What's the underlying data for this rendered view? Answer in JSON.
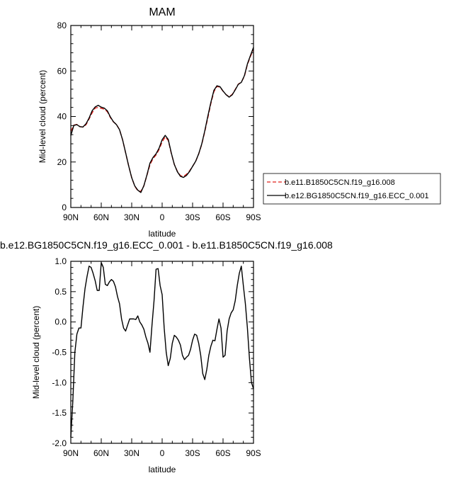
{
  "chart_data": [
    {
      "type": "line",
      "title": "MAM",
      "xlabel": "latitude",
      "ylabel": "Mid-level cloud (percent)",
      "xlim": [
        90,
        -90
      ],
      "ylim": [
        0,
        80
      ],
      "x_ticks": [
        90,
        60,
        30,
        0,
        -30,
        -60,
        -90
      ],
      "x_tick_labels": [
        "90N",
        "60N",
        "30N",
        "0",
        "30S",
        "60S",
        "90S"
      ],
      "y_ticks": [
        0,
        20,
        40,
        60,
        80
      ],
      "y_tick_labels": [
        "0",
        "20",
        "40",
        "60",
        "80"
      ],
      "legend_position": "right",
      "x": [
        90,
        87,
        84,
        81,
        78,
        75,
        72,
        69,
        66,
        63,
        60,
        57,
        54,
        51,
        48,
        45,
        42,
        39,
        36,
        33,
        30,
        27,
        24,
        21,
        18,
        15,
        12,
        9,
        6,
        3,
        0,
        -3,
        -6,
        -9,
        -12,
        -15,
        -18,
        -21,
        -24,
        -27,
        -30,
        -33,
        -36,
        -39,
        -42,
        -45,
        -48,
        -51,
        -54,
        -57,
        -60,
        -63,
        -66,
        -69,
        -72,
        -75,
        -78,
        -81,
        -84,
        -87,
        -90
      ],
      "series": [
        {
          "name": "b.e11.B1850C5CN.f19_g16.008",
          "color": "#e0201b",
          "dash": "dashed",
          "values": [
            33.5,
            36.2,
            36.5,
            35.6,
            35.3,
            36.4,
            38.9,
            41.6,
            43.7,
            44.0,
            43.6,
            43.2,
            42.1,
            39.5,
            37.6,
            36.5,
            34.2,
            29.8,
            24.0,
            18.3,
            13.1,
            9.4,
            7.3,
            7.1,
            9.5,
            14.1,
            18.8,
            21.5,
            23.1,
            25.5,
            28.8,
            31.0,
            29.5,
            23.8,
            18.9,
            15.9,
            14.0,
            13.6,
            14.6,
            16.1,
            18.1,
            20.2,
            23.5,
            27.7,
            33.3,
            39.4,
            45.7,
            50.9,
            53.2,
            52.9,
            51.1,
            49.6,
            48.7,
            49.7,
            51.9,
            54.2,
            55.1,
            57.6,
            62.8,
            66.4,
            69.5
          ]
        },
        {
          "name": "b.e12.BG1850C5CN.f19_g16.ECC_0.001",
          "color": "#000000",
          "dash": "solid",
          "values": [
            31.6,
            36.1,
            36.4,
            35.5,
            35.4,
            36.8,
            39.3,
            42.5,
            44.2,
            44.9,
            44.1,
            43.7,
            42.5,
            39.8,
            37.7,
            36.4,
            34.2,
            29.8,
            24.1,
            18.3,
            13.1,
            9.5,
            7.6,
            6.6,
            9.6,
            14.3,
            19.5,
            22.0,
            23.6,
            26.1,
            29.8,
            31.7,
            29.9,
            24.0,
            18.9,
            15.7,
            13.7,
            13.2,
            14.1,
            15.8,
            18.1,
            20.3,
            23.6,
            27.9,
            33.7,
            40.1,
            46.2,
            51.5,
            53.5,
            53.1,
            51.2,
            49.6,
            48.5,
            49.5,
            51.7,
            54.1,
            55.0,
            57.9,
            63.1,
            66.8,
            70.4
          ]
        }
      ]
    },
    {
      "type": "line",
      "title": "b.e12.BG1850C5CN.f19_g16.ECC_0.001 - b.e11.B1850C5CN.f19_g16.008",
      "xlabel": "latitude",
      "ylabel": "Mid-level cloud (percent)",
      "xlim": [
        90,
        -90
      ],
      "ylim": [
        -2.0,
        1.0
      ],
      "x_ticks": [
        90,
        60,
        30,
        0,
        -30,
        -60,
        -90
      ],
      "x_tick_labels": [
        "90N",
        "60N",
        "30N",
        "0",
        "30S",
        "60S",
        "90S"
      ],
      "y_ticks": [
        -2.0,
        -1.5,
        -1.0,
        -0.5,
        0.0,
        0.5,
        1.0
      ],
      "y_tick_labels": [
        "-2.0",
        "-1.5",
        "-1.0",
        "-0.5",
        "0.0",
        "0.5",
        "1.0"
      ],
      "series": [
        {
          "color": "#000000",
          "dash": "solid",
          "x": [
            90,
            88,
            86,
            84,
            82,
            80,
            78,
            76,
            74,
            72,
            70,
            68,
            66,
            64,
            62,
            60,
            58,
            56,
            54,
            52,
            50,
            48,
            46,
            44,
            42,
            40,
            38,
            36,
            34,
            32,
            30,
            28,
            26,
            24,
            22,
            20,
            18,
            16,
            14,
            12,
            10,
            8,
            6,
            4,
            2,
            0,
            -2,
            -4,
            -6,
            -8,
            -10,
            -12,
            -14,
            -16,
            -18,
            -20,
            -22,
            -24,
            -26,
            -28,
            -30,
            -32,
            -34,
            -36,
            -38,
            -40,
            -42,
            -44,
            -46,
            -48,
            -50,
            -52,
            -54,
            -56,
            -58,
            -60,
            -62,
            -64,
            -66,
            -68,
            -70,
            -72,
            -74,
            -76,
            -78,
            -80,
            -82,
            -84,
            -86,
            -88,
            -90
          ],
          "values": [
            -1.9,
            -1.3,
            -0.5,
            -0.2,
            -0.1,
            -0.1,
            0.25,
            0.55,
            0.75,
            0.92,
            0.9,
            0.8,
            0.68,
            0.52,
            0.52,
            0.98,
            0.9,
            0.62,
            0.6,
            0.66,
            0.7,
            0.67,
            0.58,
            0.42,
            0.3,
            0.05,
            -0.1,
            -0.15,
            -0.05,
            0.05,
            0.05,
            0.05,
            0.04,
            0.1,
            0.0,
            -0.05,
            -0.12,
            -0.25,
            -0.35,
            -0.5,
            -0.05,
            0.35,
            0.87,
            0.88,
            0.6,
            0.45,
            -0.1,
            -0.5,
            -0.72,
            -0.6,
            -0.35,
            -0.22,
            -0.25,
            -0.3,
            -0.38,
            -0.55,
            -0.62,
            -0.58,
            -0.55,
            -0.45,
            -0.3,
            -0.2,
            -0.22,
            -0.35,
            -0.55,
            -0.85,
            -0.95,
            -0.78,
            -0.55,
            -0.4,
            -0.3,
            -0.31,
            -0.12,
            0.05,
            -0.1,
            -0.58,
            -0.55,
            -0.15,
            0.05,
            0.15,
            0.2,
            0.35,
            0.6,
            0.8,
            0.92,
            0.6,
            0.3,
            -0.1,
            -0.6,
            -1.0,
            -1.1
          ]
        }
      ]
    }
  ]
}
